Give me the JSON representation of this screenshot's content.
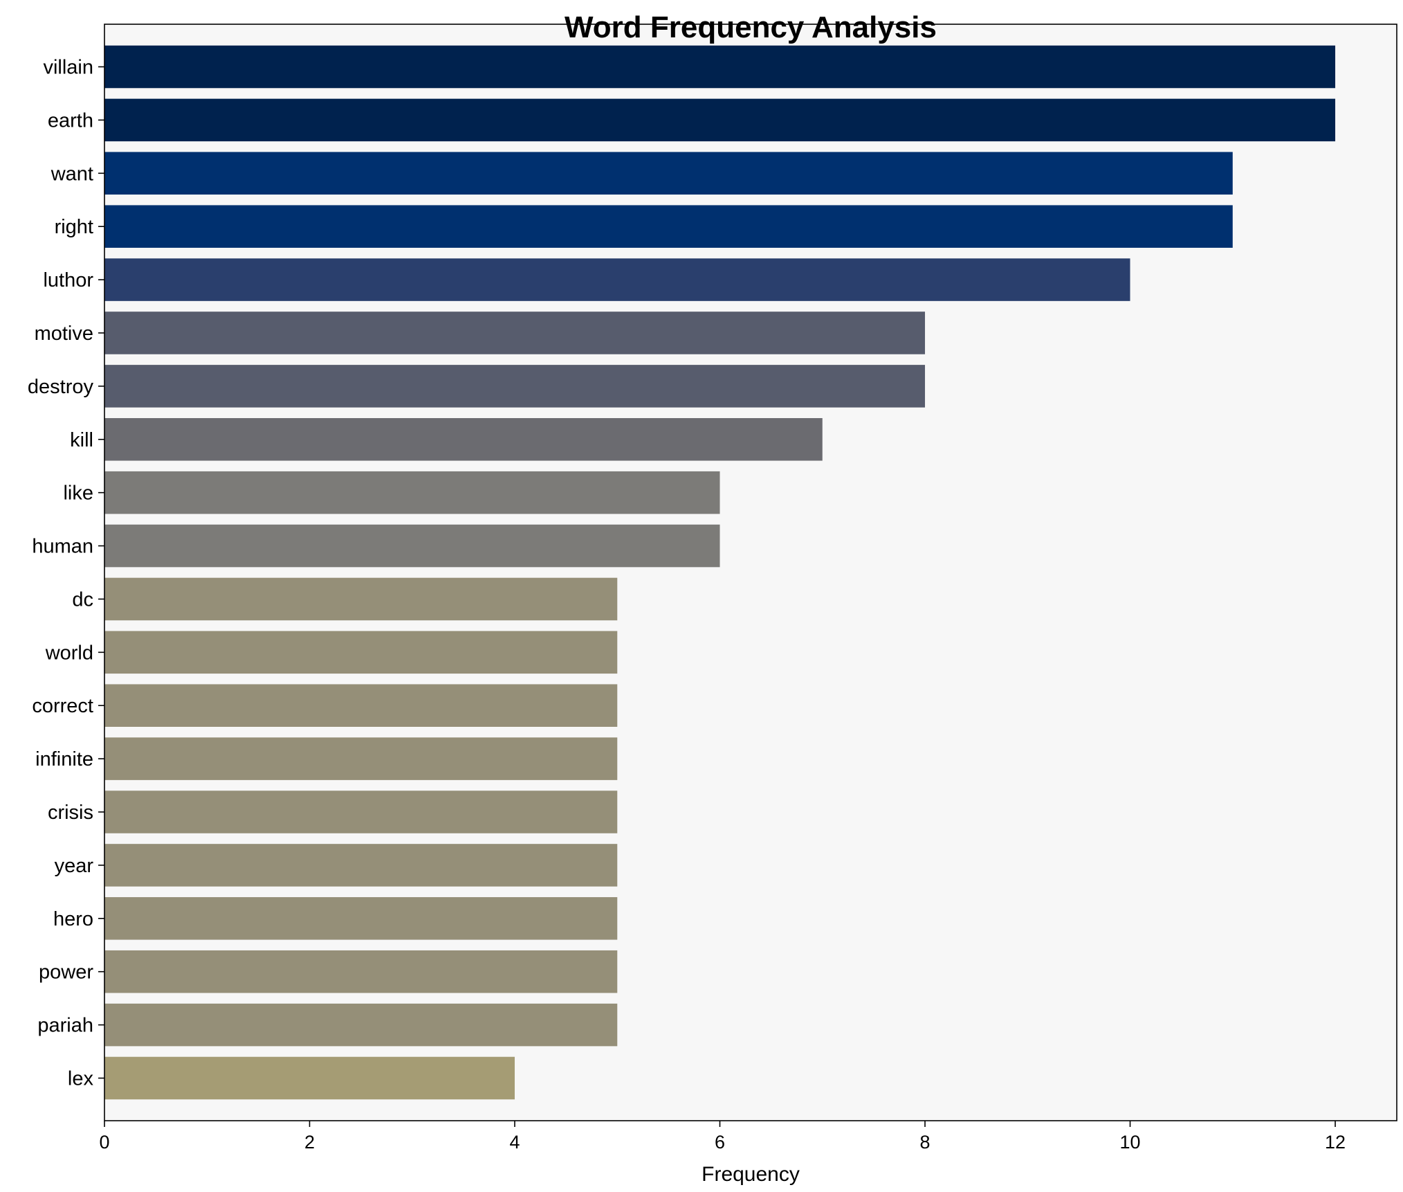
{
  "chart_data": {
    "type": "bar",
    "orientation": "horizontal",
    "title": "Word Frequency Analysis",
    "xlabel": "Frequency",
    "ylabel": "",
    "xlim": [
      0,
      12.6
    ],
    "xticks": [
      0,
      2,
      4,
      6,
      8,
      10,
      12
    ],
    "grid": false,
    "categories": [
      "villain",
      "earth",
      "want",
      "right",
      "luthor",
      "motive",
      "destroy",
      "kill",
      "like",
      "human",
      "dc",
      "world",
      "correct",
      "infinite",
      "crisis",
      "year",
      "hero",
      "power",
      "pariah",
      "lex"
    ],
    "values": [
      12,
      12,
      11,
      11,
      10,
      8,
      8,
      7,
      6,
      6,
      5,
      5,
      5,
      5,
      5,
      5,
      5,
      5,
      5,
      4
    ],
    "colors": [
      "#00224e",
      "#00224e",
      "#00306f",
      "#00306f",
      "#2a3f6d",
      "#575c6d",
      "#575c6d",
      "#6b6b70",
      "#7c7b78",
      "#7c7b78",
      "#958f78",
      "#958f78",
      "#958f78",
      "#958f78",
      "#958f78",
      "#958f78",
      "#958f78",
      "#958f78",
      "#958f78",
      "#a59c74"
    ],
    "background": "#f7f7f7"
  }
}
